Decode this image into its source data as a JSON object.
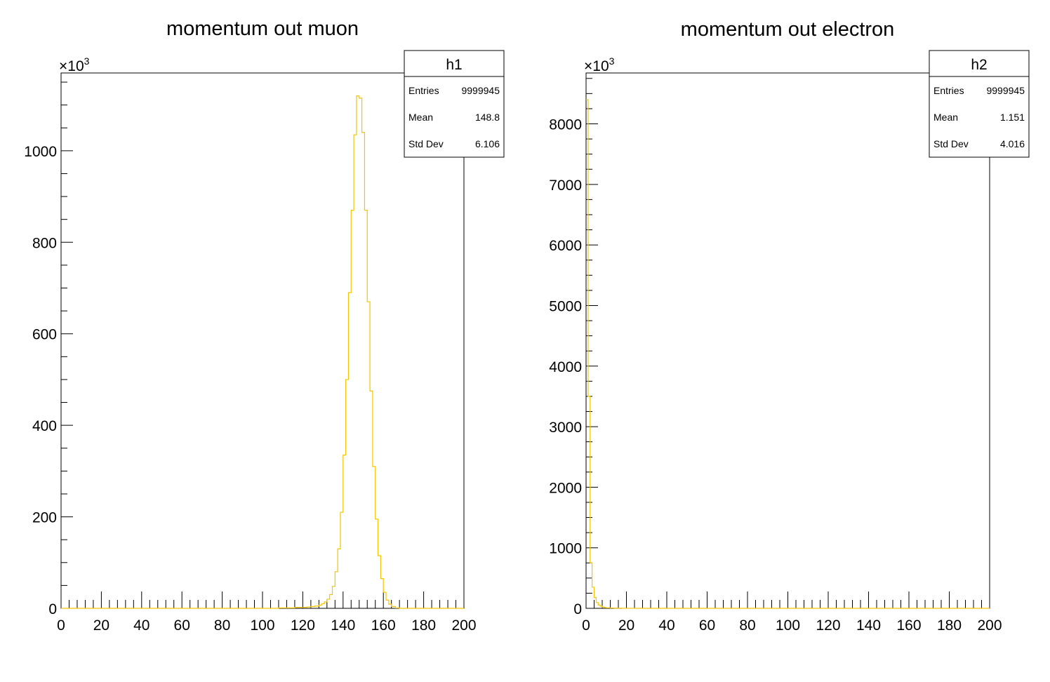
{
  "chart_data": [
    {
      "type": "histogram",
      "title": "momentum out muon",
      "xlabel": "",
      "ylabel": "",
      "xlim": [
        0,
        200
      ],
      "ylim": [
        0,
        1170
      ],
      "y_multiplier": "×10",
      "y_multiplier_exp": "3",
      "x_ticks": [
        "0",
        "20",
        "40",
        "60",
        "80",
        "100",
        "120",
        "140",
        "160",
        "180",
        "200"
      ],
      "y_ticks": [
        "0",
        "200",
        "400",
        "600",
        "800",
        "1000"
      ],
      "grid": false,
      "line_color": "#f5c400",
      "bin_width": 1.333333,
      "bins": {
        "x_start": [
          0,
          2,
          4,
          6,
          8,
          10,
          12,
          14,
          16,
          18,
          20,
          22,
          24,
          26,
          28,
          30,
          32,
          34,
          36,
          38,
          40,
          42,
          44,
          46,
          48,
          50,
          52,
          54,
          56,
          58,
          60,
          62,
          64,
          66,
          68,
          70,
          72,
          74,
          76,
          78,
          80,
          82,
          84,
          86,
          88,
          90,
          92,
          94,
          96,
          98,
          100,
          102,
          104,
          106,
          108,
          110,
          112,
          114,
          116,
          118,
          120,
          122,
          124,
          126,
          128,
          129.33,
          130.67,
          132,
          133.33,
          134.67,
          136,
          137.33,
          138.67,
          140,
          141.33,
          142.67,
          144,
          145.33,
          146.67,
          148,
          149.33,
          150.67,
          152,
          153.33,
          154.67,
          156,
          157.33,
          158.67,
          160,
          161.33,
          162.67,
          164,
          166,
          168,
          170,
          172,
          174,
          176,
          178,
          180,
          182,
          184,
          186,
          188,
          190,
          192,
          194,
          196,
          198
        ],
        "values": [
          0,
          0,
          0,
          0,
          0,
          0,
          0,
          0,
          0,
          0,
          0,
          0,
          0,
          0,
          0,
          0,
          0,
          0,
          0,
          0,
          0,
          0,
          0,
          0,
          0,
          0,
          0,
          0,
          0,
          0,
          0,
          0,
          0,
          0,
          0,
          0,
          0,
          0,
          0,
          0,
          0,
          0,
          0,
          0,
          0,
          0,
          0,
          0,
          0,
          0,
          0,
          0,
          0,
          0,
          1,
          1,
          1,
          1,
          2,
          2,
          2,
          3,
          4,
          5,
          7,
          10,
          14,
          20,
          30,
          48,
          80,
          130,
          210,
          335,
          500,
          690,
          870,
          1035,
          1120,
          1115,
          1040,
          870,
          670,
          475,
          310,
          195,
          115,
          65,
          35,
          18,
          9,
          4,
          1,
          0,
          0,
          0,
          0,
          0,
          0,
          0,
          0,
          0,
          0,
          0,
          0,
          0,
          0,
          0,
          0
        ]
      },
      "stats": {
        "name": "h1",
        "rows": [
          {
            "label": "Entries",
            "value": "9999945"
          },
          {
            "label": "Mean",
            "value": "148.8"
          },
          {
            "label": "Std Dev",
            "value": "6.106"
          }
        ]
      }
    },
    {
      "type": "histogram",
      "title": "momentum out electron",
      "xlabel": "",
      "ylabel": "",
      "xlim": [
        0,
        200
      ],
      "ylim": [
        0,
        8840
      ],
      "y_multiplier": "×10",
      "y_multiplier_exp": "3",
      "x_ticks": [
        "0",
        "20",
        "40",
        "60",
        "80",
        "100",
        "120",
        "140",
        "160",
        "180",
        "200"
      ],
      "y_ticks": [
        "0",
        "1000",
        "2000",
        "3000",
        "4000",
        "5000",
        "6000",
        "7000",
        "8000"
      ],
      "grid": false,
      "line_color": "#f5c400",
      "bin_width": 1,
      "bins": {
        "x_start": [
          0,
          1,
          2,
          3,
          4,
          5,
          6,
          7,
          8,
          9,
          10,
          12,
          14,
          16,
          18,
          20,
          25,
          30,
          40,
          50,
          60,
          70,
          80,
          90,
          100,
          110,
          120,
          130,
          140,
          150,
          160,
          170,
          180,
          190
        ],
        "values": [
          8400,
          3500,
          750,
          350,
          180,
          95,
          55,
          35,
          20,
          12,
          8,
          5,
          3,
          2,
          1,
          1,
          0,
          0,
          0,
          0,
          0,
          0,
          0,
          0,
          0,
          0,
          0,
          0,
          0,
          0,
          0,
          0,
          0,
          0
        ]
      },
      "stats": {
        "name": "h2",
        "rows": [
          {
            "label": "Entries",
            "value": "9999945"
          },
          {
            "label": "Mean",
            "value": "1.151"
          },
          {
            "label": "Std Dev",
            "value": "4.016"
          }
        ]
      }
    }
  ]
}
